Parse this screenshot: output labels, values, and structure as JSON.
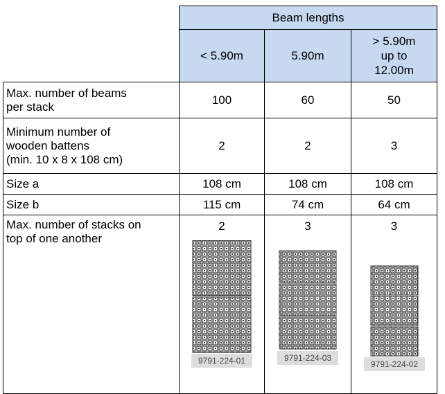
{
  "header": {
    "group": "Beam lengths",
    "columns": [
      "< 5.90m",
      "5.90m",
      "> 5.90m\nup to\n12.00m"
    ]
  },
  "table": {
    "rows": [
      [
        "Max. number of beams\nper stack",
        "100",
        "60",
        "50"
      ],
      [
        "Minimum number of\nwooden battens\n(min. 10 x 8 x 108 cm)",
        "2",
        "2",
        "3"
      ],
      [
        "Size a",
        "108 cm",
        "108 cm",
        "108 cm"
      ],
      [
        "Size b",
        "115 cm",
        "74 cm",
        "64 cm"
      ],
      [
        "Max. number of stacks on\ntop of one another",
        "2",
        "3",
        "3"
      ]
    ]
  },
  "figures": [
    "9791-224-01",
    "9791-224-03",
    "9791-224-02"
  ]
}
